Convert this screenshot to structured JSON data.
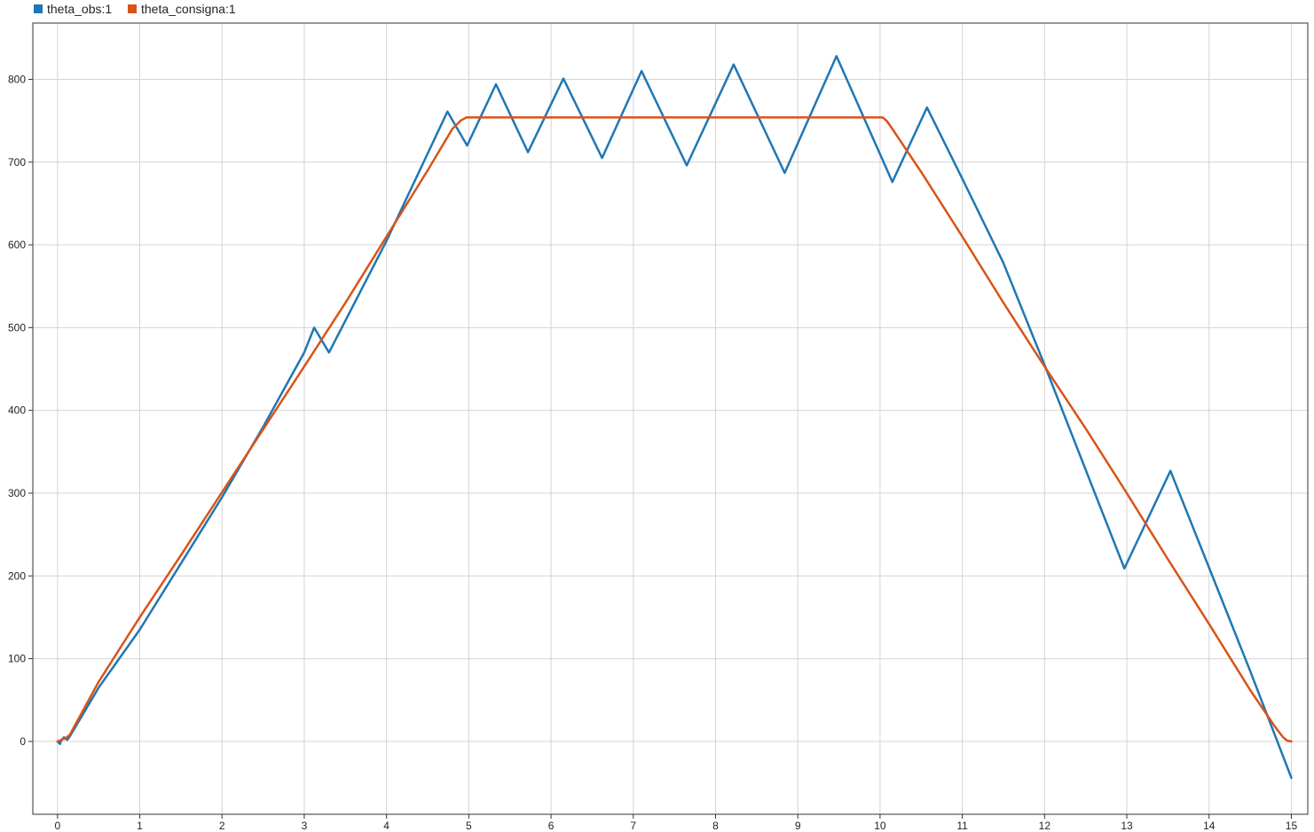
{
  "chart_data": {
    "type": "line",
    "title": "",
    "xlabel": "",
    "ylabel": "",
    "xlim": [
      -0.3,
      15.2
    ],
    "ylim": [
      -88,
      868
    ],
    "x_ticks": [
      0,
      1,
      2,
      3,
      4,
      5,
      6,
      7,
      8,
      9,
      10,
      11,
      12,
      13,
      14,
      15
    ],
    "y_ticks": [
      0,
      100,
      200,
      300,
      400,
      500,
      600,
      700,
      800
    ],
    "grid": true,
    "legend_position": "top-left",
    "series": [
      {
        "name": "theta_obs:1",
        "color": "#1f77b4",
        "x": [
          0,
          0.03,
          0.05,
          0.08,
          0.1,
          0.12,
          0.15,
          0.5,
          1.0,
          1.5,
          2.0,
          2.5,
          3.0,
          3.12,
          3.3,
          4.0,
          4.74,
          4.98,
          5.33,
          5.72,
          6.15,
          6.62,
          7.1,
          7.65,
          8.22,
          8.84,
          9.47,
          10.15,
          10.57,
          11.0,
          11.5,
          12.0,
          12.97,
          13.53,
          14.0,
          14.5,
          15.0
        ],
        "y": [
          0,
          -3,
          2,
          5,
          3,
          2,
          6,
          65,
          135,
          215,
          295,
          380,
          470,
          500,
          470,
          605,
          761,
          720,
          794,
          712,
          801,
          705,
          810,
          696,
          818,
          687,
          828,
          676,
          766,
          680,
          578,
          455,
          209,
          327,
          210,
          85,
          -44
        ]
      },
      {
        "name": "theta_consigna:1",
        "color": "#d95319",
        "x": [
          0,
          0.05,
          0.1,
          0.15,
          0.5,
          1.0,
          1.5,
          2.0,
          2.5,
          3.0,
          3.5,
          4.0,
          4.5,
          4.8,
          4.9,
          4.97,
          10.03,
          10.08,
          10.15,
          10.5,
          11.0,
          11.5,
          12.0,
          12.5,
          13.0,
          13.5,
          14.0,
          14.5,
          14.8,
          14.9,
          14.95,
          15.0
        ],
        "y": [
          0,
          2,
          4,
          8,
          72,
          150,
          225,
          301,
          377,
          453,
          530,
          610,
          690,
          740,
          750,
          754,
          754,
          750,
          740,
          688,
          610,
          530,
          453,
          378,
          300,
          220,
          142,
          62,
          18,
          5,
          1,
          0
        ]
      }
    ]
  }
}
